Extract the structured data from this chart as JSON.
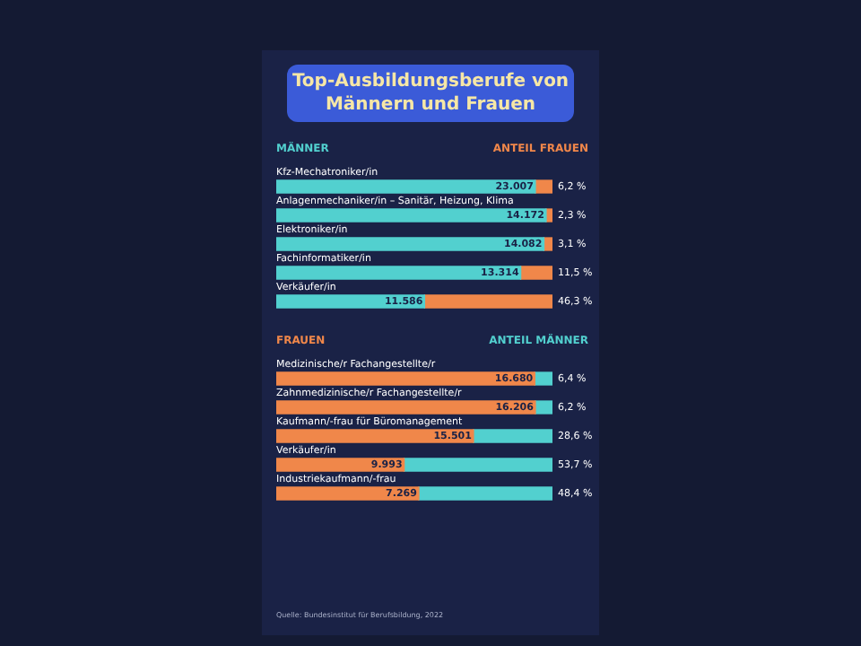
{
  "chart_data": [
    {
      "type": "bar",
      "title": "Top-Ausbildungsberufe von Männern und Frauen",
      "orientation": "horizontal",
      "stacked": true,
      "legend": "top",
      "tick_labels": false,
      "xlim": [
        0,
        100
      ],
      "categories": [
        "Kfz-Mechatroniker/in",
        "Anlagenmechaniker/in – Sanitär, Heizung, Klima",
        "Elektroniker/in",
        "Fachinformatiker/in",
        "Verkäufer/in"
      ],
      "series": [
        {
          "name": "MÄNNER",
          "color": "#52d0cf",
          "values": [
            93.8,
            97.7,
            96.9,
            88.5,
            53.7
          ]
        },
        {
          "name": "ANTEIL FRAUEN",
          "color": "#f0874a",
          "values": [
            6.2,
            2.3,
            3.1,
            11.5,
            46.3
          ],
          "value_labels": [
            "6,2 %",
            "2,3 %",
            "3,1 %",
            "11,5 %",
            "46,3 %"
          ]
        }
      ],
      "annotations": [
        {
          "text": "23.007",
          "x": 93.8,
          "y": "Kfz-Mechatroniker/in"
        },
        {
          "text": "14.172",
          "x": 97.7,
          "y": "Anlagenmechaniker/in – Sanitär, Heizung, Klima"
        },
        {
          "text": "14.082",
          "x": 96.9,
          "y": "Elektroniker/in"
        },
        {
          "text": "13.314",
          "x": 88.5,
          "y": "Fachinformatiker/in"
        },
        {
          "text": "11.586",
          "x": 53.7,
          "y": "Verkäufer/in"
        }
      ]
    },
    {
      "type": "bar",
      "orientation": "horizontal",
      "stacked": true,
      "legend": "top",
      "tick_labels": false,
      "xlim": [
        0,
        100
      ],
      "categories": [
        "Medizinische/r Fachangestellte/r",
        "Zahnmedizinische/r Fachangestellte/r",
        "Kaufmann/-frau für Büromanagement",
        "Verkäufer/in",
        "Industriekaufmann/-frau"
      ],
      "series": [
        {
          "name": "FRAUEN",
          "color": "#f0874a",
          "values": [
            93.6,
            93.8,
            71.4,
            46.3,
            51.6
          ]
        },
        {
          "name": "ANTEIL MÄNNER",
          "color": "#52d0cf",
          "values": [
            6.4,
            6.2,
            28.6,
            53.7,
            48.4
          ],
          "value_labels": [
            "6,4 %",
            "6,2 %",
            "28,6 %",
            "53,7 %",
            "48,4 %"
          ]
        }
      ],
      "annotations": [
        {
          "text": "16.680",
          "x": 93.6,
          "y": "Medizinische/r Fachangestellte/r"
        },
        {
          "text": "16.206",
          "x": 93.8,
          "y": "Zahnmedizinische/r Fachangestellte/r"
        },
        {
          "text": "15.501",
          "x": 71.4,
          "y": "Kaufmann/-frau für Büromanagement"
        },
        {
          "text": "9.993",
          "x": 46.3,
          "y": "Verkäufer/in"
        },
        {
          "text": "7.269",
          "x": 51.6,
          "y": "Industriekaufmann/-frau"
        },
        "Quelle: Bundesinstitut für Berufsbildung, 2022"
      ]
    }
  ]
}
